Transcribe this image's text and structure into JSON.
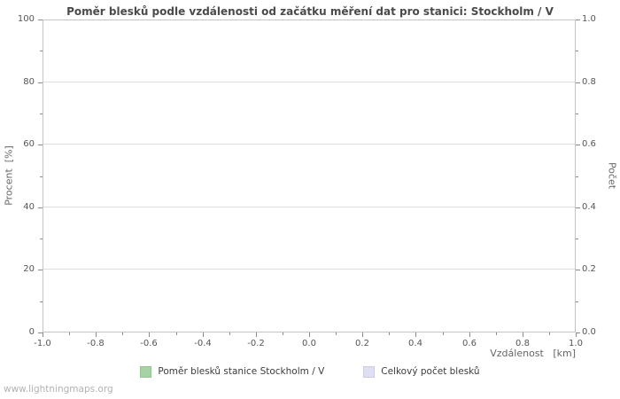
{
  "watermark": "www.lightningmaps.org",
  "chart_data": {
    "type": "bar",
    "title": "Poměr blesků podle vzdálenosti od začátku měření dat pro stanici: Stockholm / V",
    "xlabel": "Vzdálenost   [km]",
    "ylabel_left": "Procent  [%]",
    "ylabel_right": "Počet",
    "x_ticks": [
      "-1.0",
      "-0.8",
      "-0.6",
      "-0.4",
      "-0.2",
      "0.0",
      "0.2",
      "0.4",
      "0.6",
      "0.8",
      "1.0"
    ],
    "y_left_ticks": [
      "0",
      "20",
      "40",
      "60",
      "80",
      "100"
    ],
    "y_right_ticks": [
      "0.0",
      "0.2",
      "0.4",
      "0.6",
      "0.8",
      "1.0"
    ],
    "xlim": [
      -1.0,
      1.0
    ],
    "ylim_left": [
      0,
      100
    ],
    "ylim_right": [
      0.0,
      1.0
    ],
    "grid": "horizontal",
    "legend_position": "bottom",
    "series": [
      {
        "name": "Poměr blesků stanice Stockholm / V",
        "color": "#a6d3a6",
        "values": []
      },
      {
        "name": "Celkový počet blesků",
        "color": "#dfdff4",
        "values": []
      }
    ]
  }
}
